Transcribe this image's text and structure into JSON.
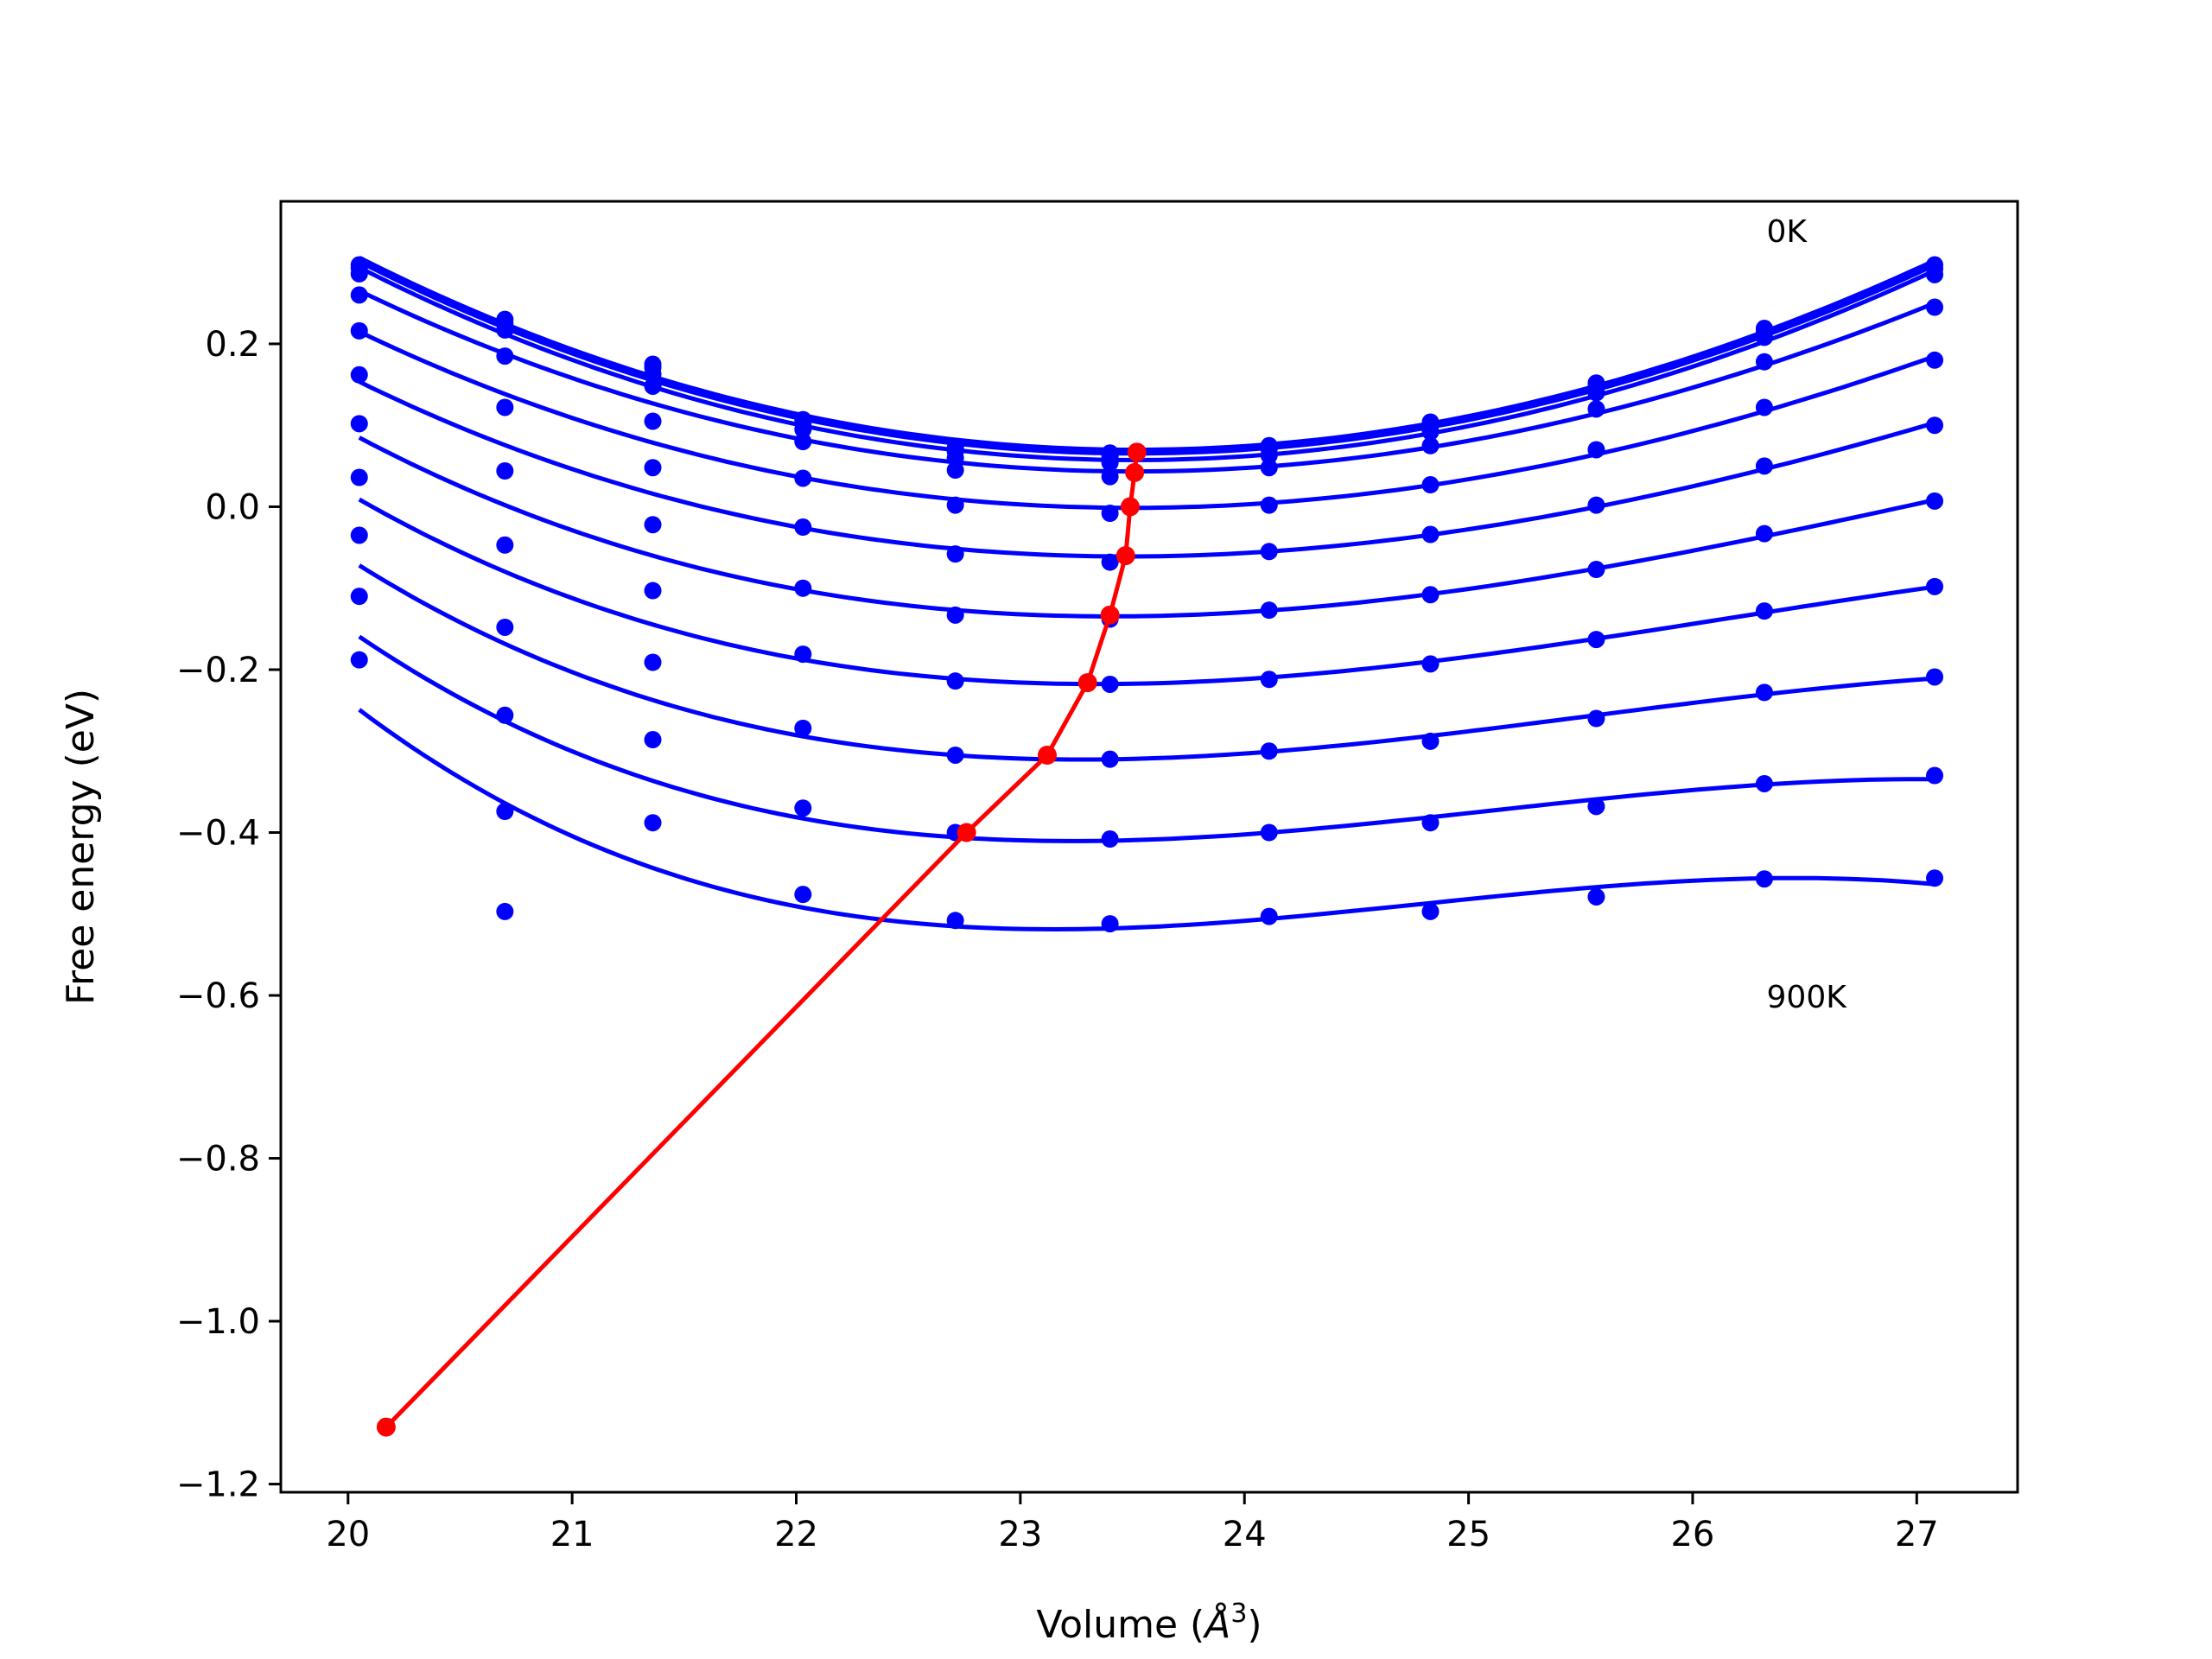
{
  "chart_data": {
    "type": "line",
    "title": "",
    "xlabel_prefix": "Volume (",
    "xlabel_unit": "Å",
    "xlabel_exp": "3",
    "xlabel_suffix": ")",
    "ylabel": "Free energy (eV)",
    "xlim": [
      19.7,
      27.45
    ],
    "ylim": [
      -1.21,
      0.375
    ],
    "xticks": [
      20,
      21,
      22,
      23,
      24,
      25,
      26,
      27
    ],
    "xtick_labels": [
      "20",
      "21",
      "22",
      "23",
      "24",
      "25",
      "26",
      "27"
    ],
    "yticks": [
      -1.2,
      -1.0,
      -0.8,
      -0.6,
      -0.4,
      -0.2,
      0.0,
      0.2
    ],
    "ytick_labels": [
      "−1.2",
      "−1.0",
      "−0.8",
      "−0.6",
      "−0.4",
      "−0.2",
      "0.0",
      "0.2"
    ],
    "grid": false,
    "annotations": [
      {
        "text": "0K",
        "x": 26.33,
        "y": 0.34
      },
      {
        "text": "900K",
        "x": 26.33,
        "y": -0.6
      }
    ],
    "colors": {
      "series": "#0000ff",
      "minima": "#ff0000"
    },
    "volumes": [
      20.05,
      20.7,
      21.36,
      22.03,
      22.71,
      23.4,
      24.11,
      24.83,
      25.57,
      26.32,
      27.08
    ],
    "series": [
      {
        "values": [
          0.297,
          0.23,
          0.175,
          0.107,
          0.072,
          0.066,
          0.075,
          0.104,
          0.152,
          0.219,
          0.297
        ]
      },
      {
        "values": [
          0.293,
          0.225,
          0.171,
          0.103,
          0.068,
          0.062,
          0.071,
          0.1,
          0.148,
          0.214,
          0.292
        ]
      },
      {
        "values": [
          0.286,
          0.217,
          0.163,
          0.095,
          0.06,
          0.054,
          0.063,
          0.092,
          0.14,
          0.208,
          0.285
        ]
      },
      {
        "values": [
          0.26,
          0.185,
          0.148,
          0.08,
          0.045,
          0.037,
          0.048,
          0.075,
          0.12,
          0.178,
          0.245
        ]
      },
      {
        "values": [
          0.216,
          0.122,
          0.105,
          0.035,
          0.002,
          -0.008,
          0.002,
          0.027,
          0.07,
          0.122,
          0.18
        ]
      },
      {
        "values": [
          0.162,
          0.044,
          0.048,
          -0.025,
          -0.058,
          -0.068,
          -0.055,
          -0.034,
          0.002,
          0.05,
          0.1
        ]
      },
      {
        "values": [
          0.102,
          -0.047,
          -0.022,
          -0.1,
          -0.133,
          -0.138,
          -0.127,
          -0.108,
          -0.077,
          -0.033,
          0.007
        ]
      },
      {
        "values": [
          0.036,
          -0.148,
          -0.103,
          -0.181,
          -0.214,
          -0.218,
          -0.212,
          -0.193,
          -0.163,
          -0.128,
          -0.098
        ]
      },
      {
        "values": [
          -0.035,
          -0.256,
          -0.191,
          -0.272,
          -0.305,
          -0.31,
          -0.3,
          -0.288,
          -0.26,
          -0.228,
          -0.209
        ]
      },
      {
        "values": [
          -0.11,
          -0.374,
          -0.286,
          -0.37,
          -0.4,
          -0.408,
          -0.4,
          -0.388,
          -0.368,
          -0.34,
          -0.33
        ]
      },
      {
        "values": [
          -0.188,
          -0.497,
          -0.388,
          -0.476,
          -0.508,
          -0.512,
          -0.503,
          -0.497,
          -0.479,
          -0.457,
          -0.456
        ]
      }
    ],
    "minima": {
      "x": [
        20.17,
        22.76,
        23.12,
        23.3,
        23.4,
        23.47,
        23.49,
        23.51,
        23.52
      ],
      "y": [
        -1.13,
        -0.4,
        -0.305,
        -0.216,
        -0.133,
        -0.06,
        0.0,
        0.042,
        0.067
      ]
    }
  }
}
